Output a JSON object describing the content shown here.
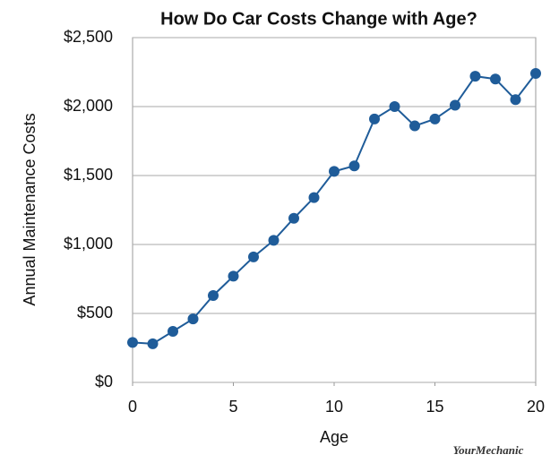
{
  "chart_data": {
    "type": "line",
    "title": "How Do Car Costs Change with Age?",
    "x_label": "Age",
    "y_label": "Annual Maintenance Costs",
    "watermark": "YourMechanic",
    "x": [
      0,
      1,
      2,
      3,
      4,
      5,
      6,
      7,
      8,
      9,
      10,
      11,
      12,
      13,
      14,
      15,
      16,
      17,
      18,
      19,
      20
    ],
    "series": [
      {
        "name": "Annual Maintenance Costs",
        "color": "#1f5c99",
        "values": [
          290,
          280,
          370,
          460,
          630,
          770,
          910,
          1030,
          1190,
          1340,
          1530,
          1570,
          1910,
          2000,
          1860,
          1910,
          2010,
          2220,
          2200,
          2050,
          2240
        ]
      }
    ],
    "xlim": [
      0,
      20
    ],
    "xticks": [
      0,
      5,
      10,
      15,
      20
    ],
    "ylim": [
      0,
      2500
    ],
    "yticks": [
      {
        "value": 0,
        "label": "$0"
      },
      {
        "value": 500,
        "label": "$500"
      },
      {
        "value": 1000,
        "label": "$1,000"
      },
      {
        "value": 1500,
        "label": "$1,500"
      },
      {
        "value": 2000,
        "label": "$2,000"
      },
      {
        "value": 2500,
        "label": "$2,500"
      }
    ],
    "grid": true
  }
}
